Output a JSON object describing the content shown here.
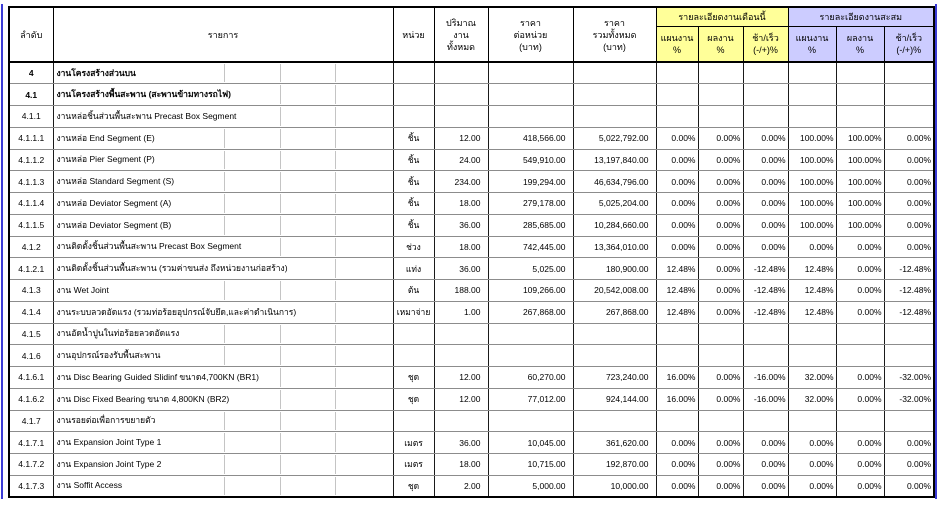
{
  "table": {
    "header": {
      "no": "ลำดับ",
      "item": "รายการ",
      "unit": "หน่วย",
      "quantity": "ปริมาณ\nงาน\nทั้งหมด",
      "unit_price": "ราคา\nต่อหน่วย\n(บาท)",
      "total_price": "ราคา\nรวมทั้งหมด\n(บาท)",
      "month_group": "รายละเอียดงานเดือนนี้",
      "cum_group": "รายละเอียดงานสะสม",
      "plan": "แผนงาน\n%",
      "actual": "ผลงาน\n%",
      "variance": "ช้า/เร็ว\n(-/+)%"
    },
    "colors": {
      "month_group_bg": "#ffff99",
      "cum_group_bg": "#ccccff",
      "page_break_line": "#3b3bd6"
    },
    "rows": [
      {
        "no": "4",
        "desc": "งานโครงสร้างส่วนบน",
        "bold": true,
        "unit": "",
        "qty": "",
        "unit_price": "",
        "total_price": "",
        "m_plan": "",
        "m_actual": "",
        "m_var": "",
        "c_plan": "",
        "c_actual": "",
        "c_var": ""
      },
      {
        "no": "4.1",
        "desc": "งานโครงสร้างพื้นสะพาน (สะพานข้ามทางรถไฟ)",
        "bold": true,
        "unit": "",
        "qty": "",
        "unit_price": "",
        "total_price": "",
        "m_plan": "",
        "m_actual": "",
        "m_var": "",
        "c_plan": "",
        "c_actual": "",
        "c_var": ""
      },
      {
        "no": "4.1.1",
        "desc": "งานหล่อชิ้นส่วนพื้นสะพาน Precast Box Segment",
        "bold": false,
        "unit": "",
        "qty": "",
        "unit_price": "",
        "total_price": "",
        "m_plan": "",
        "m_actual": "",
        "m_var": "",
        "c_plan": "",
        "c_actual": "",
        "c_var": ""
      },
      {
        "no": "4.1.1.1",
        "desc": "งานหล่อ End Segment (E)",
        "bold": false,
        "unit": "ชิ้น",
        "qty": "12.00",
        "unit_price": "418,566.00",
        "total_price": "5,022,792.00",
        "m_plan": "0.00%",
        "m_actual": "0.00%",
        "m_var": "0.00%",
        "c_plan": "100.00%",
        "c_actual": "100.00%",
        "c_var": "0.00%"
      },
      {
        "no": "4.1.1.2",
        "desc": "งานหล่อ Pier Segment (P)",
        "bold": false,
        "unit": "ชิ้น",
        "qty": "24.00",
        "unit_price": "549,910.00",
        "total_price": "13,197,840.00",
        "m_plan": "0.00%",
        "m_actual": "0.00%",
        "m_var": "0.00%",
        "c_plan": "100.00%",
        "c_actual": "100.00%",
        "c_var": "0.00%"
      },
      {
        "no": "4.1.1.3",
        "desc": "งานหล่อ Standard Segment (S)",
        "bold": false,
        "unit": "ชิ้น",
        "qty": "234.00",
        "unit_price": "199,294.00",
        "total_price": "46,634,796.00",
        "m_plan": "0.00%",
        "m_actual": "0.00%",
        "m_var": "0.00%",
        "c_plan": "100.00%",
        "c_actual": "100.00%",
        "c_var": "0.00%"
      },
      {
        "no": "4.1.1.4",
        "desc": "งานหล่อ Deviator Segment (A)",
        "bold": false,
        "unit": "ชิ้น",
        "qty": "18.00",
        "unit_price": "279,178.00",
        "total_price": "5,025,204.00",
        "m_plan": "0.00%",
        "m_actual": "0.00%",
        "m_var": "0.00%",
        "c_plan": "100.00%",
        "c_actual": "100.00%",
        "c_var": "0.00%"
      },
      {
        "no": "4.1.1.5",
        "desc": "งานหล่อ Deviator Segment (B)",
        "bold": false,
        "unit": "ชิ้น",
        "qty": "36.00",
        "unit_price": "285,685.00",
        "total_price": "10,284,660.00",
        "m_plan": "0.00%",
        "m_actual": "0.00%",
        "m_var": "0.00%",
        "c_plan": "100.00%",
        "c_actual": "100.00%",
        "c_var": "0.00%"
      },
      {
        "no": "4.1.2",
        "desc": "งานติดตั้งชิ้นส่วนพื้นสะพาน Precast Box Segment",
        "bold": false,
        "unit": "ช่วง",
        "qty": "18.00",
        "unit_price": "742,445.00",
        "total_price": "13,364,010.00",
        "m_plan": "0.00%",
        "m_actual": "0.00%",
        "m_var": "0.00%",
        "c_plan": "0.00%",
        "c_actual": "0.00%",
        "c_var": "0.00%"
      },
      {
        "no": "4.1.2.1",
        "desc": "งานติดตั้งชิ้นส่วนพื้นสะพาน (รวมค่าขนส่ง ถึงหน่วยงานก่อสร้าง)",
        "bold": false,
        "unit": "แท่ง",
        "qty": "36.00",
        "unit_price": "5,025.00",
        "total_price": "180,900.00",
        "m_plan": "12.48%",
        "m_actual": "0.00%",
        "m_var": "-12.48%",
        "c_plan": "12.48%",
        "c_actual": "0.00%",
        "c_var": "-12.48%"
      },
      {
        "no": "4.1.3",
        "desc": "งาน Wet Joint",
        "bold": false,
        "unit": "ต้น",
        "qty": "188.00",
        "unit_price": "109,266.00",
        "total_price": "20,542,008.00",
        "m_plan": "12.48%",
        "m_actual": "0.00%",
        "m_var": "-12.48%",
        "c_plan": "12.48%",
        "c_actual": "0.00%",
        "c_var": "-12.48%"
      },
      {
        "no": "4.1.4",
        "desc": "งานระบบลวดอัดแรง (รวมท่อร้อยอุปกรณ์จับยึด,และค่าดำเนินการ)",
        "bold": false,
        "unit": "เหมาจ่าย",
        "qty": "1.00",
        "unit_price": "267,868.00",
        "total_price": "267,868.00",
        "m_plan": "12.48%",
        "m_actual": "0.00%",
        "m_var": "-12.48%",
        "c_plan": "12.48%",
        "c_actual": "0.00%",
        "c_var": "-12.48%"
      },
      {
        "no": "4.1.5",
        "desc": "งานอัดน้ำปูนในท่อร้อยลวดอัดแรง",
        "bold": false,
        "unit": "",
        "qty": "",
        "unit_price": "",
        "total_price": "",
        "m_plan": "",
        "m_actual": "",
        "m_var": "",
        "c_plan": "",
        "c_actual": "",
        "c_var": ""
      },
      {
        "no": "4.1.6",
        "desc": "งานอุปกรณ์รองรับพื้นสะพาน",
        "bold": false,
        "unit": "",
        "qty": "",
        "unit_price": "",
        "total_price": "",
        "m_plan": "",
        "m_actual": "",
        "m_var": "",
        "c_plan": "",
        "c_actual": "",
        "c_var": ""
      },
      {
        "no": "4.1.6.1",
        "desc": "งาน Disc Bearing Guided Slidinf ขนาด4,700KN (BR1)",
        "bold": false,
        "unit": "ชุด",
        "qty": "12.00",
        "unit_price": "60,270.00",
        "total_price": "723,240.00",
        "m_plan": "16.00%",
        "m_actual": "0.00%",
        "m_var": "-16.00%",
        "c_plan": "32.00%",
        "c_actual": "0.00%",
        "c_var": "-32.00%"
      },
      {
        "no": "4.1.6.2",
        "desc": "งาน Disc Fixed Bearing ขนาด 4,800KN (BR2)",
        "bold": false,
        "unit": "ชุด",
        "qty": "12.00",
        "unit_price": "77,012.00",
        "total_price": "924,144.00",
        "m_plan": "16.00%",
        "m_actual": "0.00%",
        "m_var": "-16.00%",
        "c_plan": "32.00%",
        "c_actual": "0.00%",
        "c_var": "-32.00%"
      },
      {
        "no": "4.1.7",
        "desc": "งานรอยต่อเพื่อการขยายตัว",
        "bold": false,
        "unit": "",
        "qty": "",
        "unit_price": "",
        "total_price": "",
        "m_plan": "",
        "m_actual": "",
        "m_var": "",
        "c_plan": "",
        "c_actual": "",
        "c_var": ""
      },
      {
        "no": "4.1.7.1",
        "desc": "งาน Expansion Joint Type 1",
        "bold": false,
        "unit": "เมตร",
        "qty": "36.00",
        "unit_price": "10,045.00",
        "total_price": "361,620.00",
        "m_plan": "0.00%",
        "m_actual": "0.00%",
        "m_var": "0.00%",
        "c_plan": "0.00%",
        "c_actual": "0.00%",
        "c_var": "0.00%"
      },
      {
        "no": "4.1.7.2",
        "desc": "งาน Expansion Joint Type 2",
        "bold": false,
        "unit": "เมตร",
        "qty": "18.00",
        "unit_price": "10,715.00",
        "total_price": "192,870.00",
        "m_plan": "0.00%",
        "m_actual": "0.00%",
        "m_var": "0.00%",
        "c_plan": "0.00%",
        "c_actual": "0.00%",
        "c_var": "0.00%"
      },
      {
        "no": "4.1.7.3",
        "desc": "งาน Soffit Access",
        "bold": false,
        "unit": "ชุด",
        "qty": "2.00",
        "unit_price": "5,000.00",
        "total_price": "10,000.00",
        "m_plan": "0.00%",
        "m_actual": "0.00%",
        "m_var": "0.00%",
        "c_plan": "0.00%",
        "c_actual": "0.00%",
        "c_var": "0.00%"
      }
    ]
  }
}
